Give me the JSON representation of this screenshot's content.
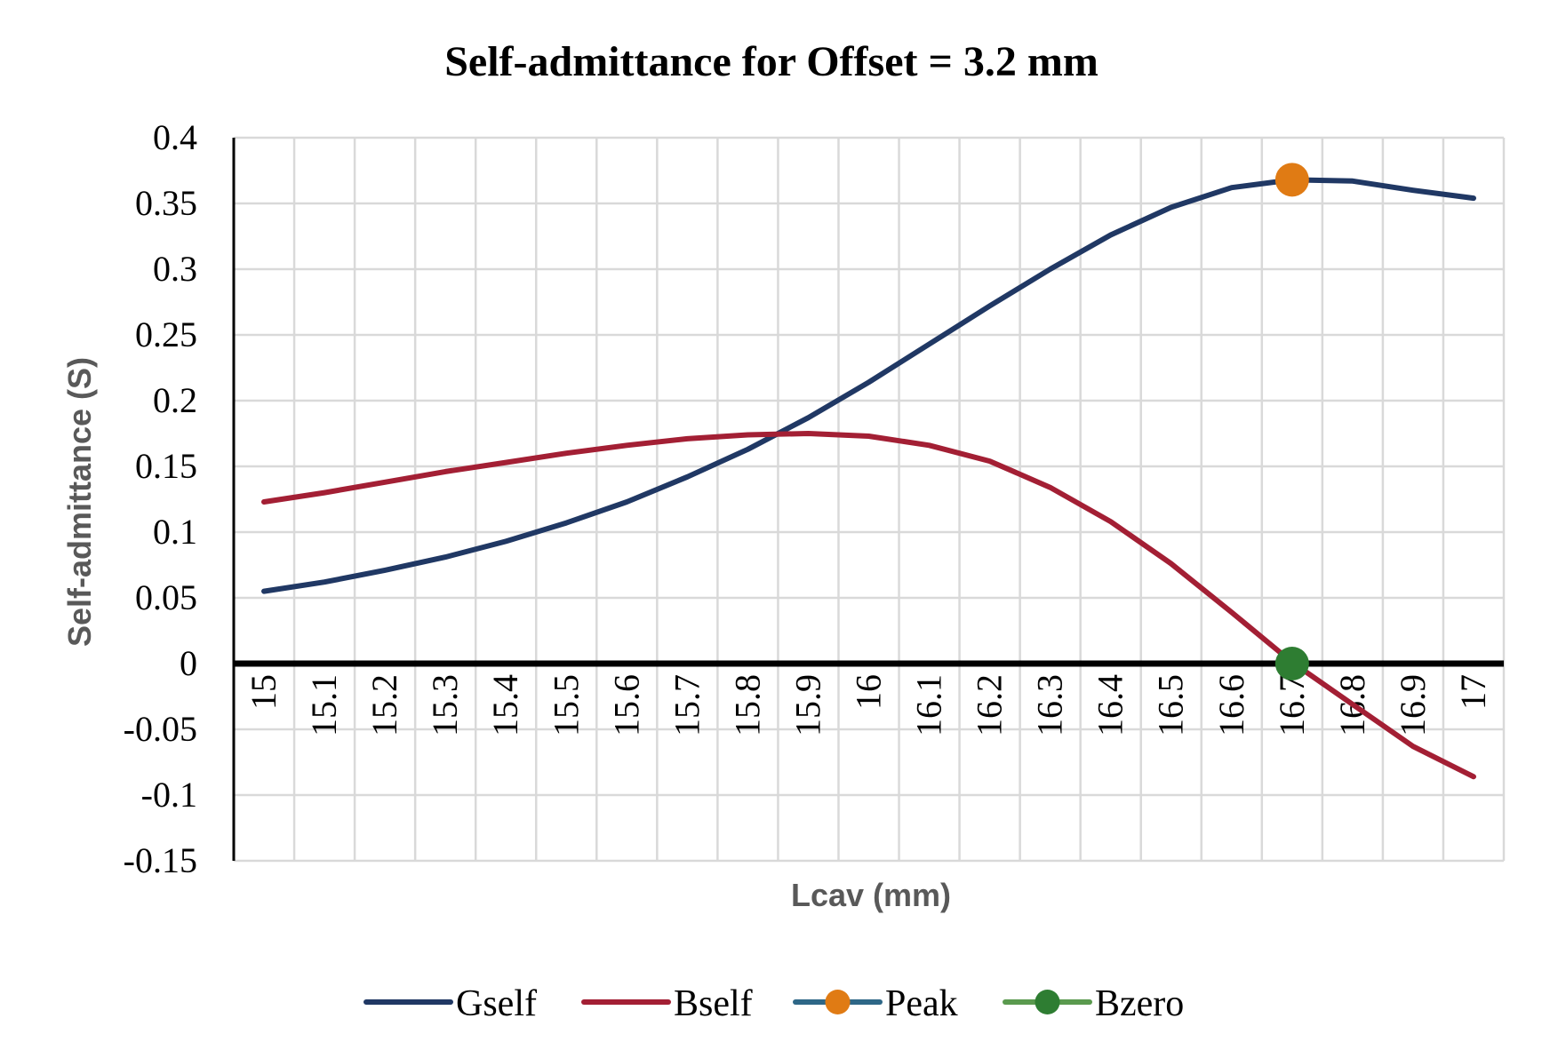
{
  "chart_data": {
    "type": "line",
    "title": "Self-admittance for Offset = 3.2 mm",
    "xlabel": "Lcav (mm)",
    "ylabel": "Self-admittance (S)",
    "categories": [
      "15",
      "15.1",
      "15.2",
      "15.3",
      "15.4",
      "15.5",
      "15.6",
      "15.7",
      "15.8",
      "15.9",
      "16",
      "16.1",
      "16.2",
      "16.3",
      "16.4",
      "16.5",
      "16.6",
      "16.7",
      "16.8",
      "16.9",
      "17"
    ],
    "ylim": [
      -0.15,
      0.4
    ],
    "yticks": [
      "0.4",
      "0.35",
      "0.3",
      "0.25",
      "0.2",
      "0.15",
      "0.1",
      "0.05",
      "0",
      "-0.05",
      "-0.1",
      "-0.15"
    ],
    "ytick_values": [
      0.4,
      0.35,
      0.3,
      0.25,
      0.2,
      0.15,
      0.1,
      0.05,
      0,
      -0.05,
      -0.1,
      -0.15
    ],
    "grid": true,
    "legend_position": "bottom",
    "series": [
      {
        "name": "Gself",
        "color": "#203864",
        "marker": "none",
        "values": [
          0.055,
          0.062,
          0.071,
          0.081,
          0.093,
          0.107,
          0.123,
          0.142,
          0.163,
          0.187,
          0.214,
          0.243,
          0.272,
          0.3,
          0.326,
          0.347,
          0.362,
          0.368,
          0.367,
          0.36,
          0.354
        ]
      },
      {
        "name": "Bself",
        "color": "#A31F34",
        "marker": "none",
        "values": [
          0.123,
          0.13,
          0.138,
          0.146,
          0.153,
          0.16,
          0.166,
          0.171,
          0.174,
          0.175,
          0.173,
          0.166,
          0.154,
          0.134,
          0.108,
          0.076,
          0.039,
          0.001,
          -0.031,
          -0.063,
          -0.086
        ]
      },
      {
        "name": "Peak",
        "color": "#E07B14",
        "line_color": "#2E6787",
        "marker": "circle",
        "points": [
          {
            "category": "16.7",
            "value": 0.368
          }
        ]
      },
      {
        "name": "Bzero",
        "color": "#2E7D32",
        "line_color": "#5A9A4E",
        "marker": "circle",
        "points": [
          {
            "category": "16.7",
            "value": 0.0
          }
        ]
      }
    ]
  }
}
